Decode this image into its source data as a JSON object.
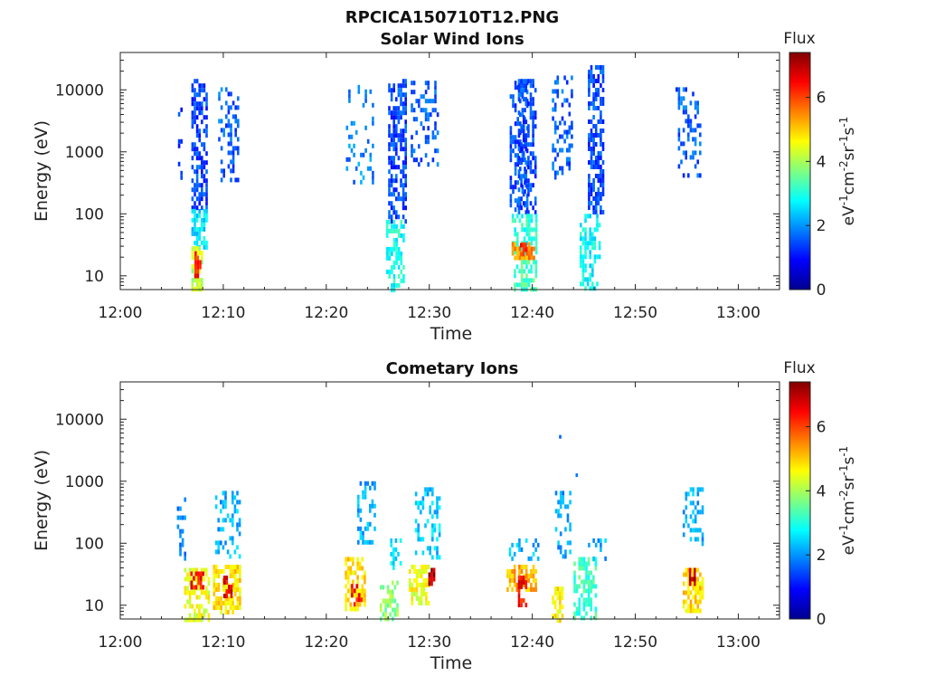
{
  "figure_title": "RPCICA150710T12.PNG",
  "chart_data": [
    {
      "type": "heatmap",
      "title": "Solar Wind Ions",
      "xlabel": "Time",
      "ylabel": "Energy (eV)",
      "yscale": "log",
      "ylim": [
        6,
        40000
      ],
      "xlim_minutes": [
        0,
        64
      ],
      "x_ticks": [
        "12:00",
        "12:10",
        "12:20",
        "12:30",
        "12:40",
        "12:50",
        "13:00"
      ],
      "y_ticks": [
        "10",
        "100",
        "1000",
        "10000"
      ],
      "colorbar": {
        "title": "Flux",
        "label": "eV-1cm-2sr-1s-1",
        "range": [
          0,
          7.4
        ],
        "ticks": [
          "0",
          "2",
          "4",
          "6"
        ]
      },
      "colormap": [
        "#00008f",
        "#0000ff",
        "#0080ff",
        "#00ffff",
        "#80ff80",
        "#ffff00",
        "#ff8000",
        "#ff0000",
        "#800000"
      ],
      "bursts": [
        {
          "t0": 5.6,
          "t1": 6.0,
          "emin": 300,
          "emax": 12000,
          "flux": 1.3,
          "density": 0.25
        },
        {
          "t0": 6.9,
          "t1": 8.3,
          "emin": 120,
          "emax": 15000,
          "flux": 1.4,
          "density": 0.6
        },
        {
          "t0": 6.9,
          "t1": 8.3,
          "emin": 30,
          "emax": 120,
          "flux": 2.6,
          "density": 0.6
        },
        {
          "t0": 6.9,
          "t1": 7.9,
          "emin": 6,
          "emax": 30,
          "flux": 4.2,
          "density": 0.75
        },
        {
          "t0": 7.2,
          "t1": 7.7,
          "emin": 10,
          "emax": 25,
          "flux": 6.2,
          "density": 0.7
        },
        {
          "t0": 9.5,
          "t1": 11.4,
          "emin": 350,
          "emax": 11000,
          "flux": 1.6,
          "density": 0.3
        },
        {
          "t0": 21.9,
          "t1": 24.5,
          "emin": 300,
          "emax": 12000,
          "flux": 1.9,
          "density": 0.18
        },
        {
          "t0": 26.0,
          "t1": 27.6,
          "emin": 80,
          "emax": 15000,
          "flux": 1.4,
          "density": 0.6
        },
        {
          "t0": 25.8,
          "t1": 27.6,
          "emin": 6,
          "emax": 80,
          "flux": 2.9,
          "density": 0.55
        },
        {
          "t0": 28.2,
          "t1": 30.8,
          "emin": 600,
          "emax": 14000,
          "flux": 1.6,
          "density": 0.3
        },
        {
          "t0": 37.8,
          "t1": 39.5,
          "emin": 120,
          "emax": 14000,
          "flux": 1.5,
          "density": 0.45
        },
        {
          "t0": 38.6,
          "t1": 40.3,
          "emin": 100,
          "emax": 15000,
          "flux": 1.4,
          "density": 0.55
        },
        {
          "t0": 38.0,
          "t1": 40.3,
          "emin": 20,
          "emax": 100,
          "flux": 3.0,
          "density": 0.55
        },
        {
          "t0": 38.0,
          "t1": 40.2,
          "emin": 18,
          "emax": 35,
          "flux": 5.4,
          "density": 0.7
        },
        {
          "t0": 38.8,
          "t1": 39.4,
          "emin": 22,
          "emax": 34,
          "flux": 6.3,
          "density": 0.6
        },
        {
          "t0": 38.2,
          "t1": 40.3,
          "emin": 6,
          "emax": 18,
          "flux": 3.3,
          "density": 0.6
        },
        {
          "t0": 41.9,
          "t1": 43.8,
          "emin": 400,
          "emax": 17000,
          "flux": 1.6,
          "density": 0.3
        },
        {
          "t0": 45.4,
          "t1": 46.9,
          "emin": 100,
          "emax": 25000,
          "flux": 1.4,
          "density": 0.6
        },
        {
          "t0": 44.6,
          "t1": 46.5,
          "emin": 6,
          "emax": 100,
          "flux": 2.8,
          "density": 0.5
        },
        {
          "t0": 53.9,
          "t1": 56.4,
          "emin": 400,
          "emax": 11000,
          "flux": 1.6,
          "density": 0.25
        }
      ]
    },
    {
      "type": "heatmap",
      "title": "Cometary Ions",
      "xlabel": "Time",
      "ylabel": "Energy (eV)",
      "yscale": "log",
      "ylim": [
        6,
        40000
      ],
      "xlim_minutes": [
        0,
        64
      ],
      "x_ticks": [
        "12:00",
        "12:10",
        "12:20",
        "12:30",
        "12:40",
        "12:50",
        "13:00"
      ],
      "y_ticks": [
        "10",
        "100",
        "1000",
        "10000"
      ],
      "colorbar": {
        "title": "Flux",
        "label": "eV-1cm-2sr-1s-1",
        "range": [
          0,
          7.4
        ],
        "ticks": [
          "0",
          "2",
          "4",
          "6"
        ]
      },
      "colormap": [
        "#00008f",
        "#0000ff",
        "#0080ff",
        "#00ffff",
        "#80ff80",
        "#ffff00",
        "#ff8000",
        "#ff0000",
        "#800000"
      ],
      "bursts": [
        {
          "t0": 5.5,
          "t1": 6.2,
          "emin": 60,
          "emax": 550,
          "flux": 2.0,
          "density": 0.3
        },
        {
          "t0": 6.2,
          "t1": 8.5,
          "emin": 6,
          "emax": 40,
          "flux": 4.5,
          "density": 0.6
        },
        {
          "t0": 6.8,
          "t1": 8.0,
          "emin": 18,
          "emax": 35,
          "flux": 6.4,
          "density": 0.65
        },
        {
          "t0": 9.2,
          "t1": 11.5,
          "emin": 60,
          "emax": 700,
          "flux": 2.2,
          "density": 0.3
        },
        {
          "t0": 9.0,
          "t1": 11.7,
          "emin": 8,
          "emax": 45,
          "flux": 4.8,
          "density": 0.7
        },
        {
          "t0": 10.0,
          "t1": 10.8,
          "emin": 14,
          "emax": 30,
          "flux": 6.6,
          "density": 0.6
        },
        {
          "t0": 21.8,
          "t1": 23.8,
          "emin": 8,
          "emax": 60,
          "flux": 4.8,
          "density": 0.6
        },
        {
          "t0": 22.4,
          "t1": 23.4,
          "emin": 10,
          "emax": 22,
          "flux": 6.4,
          "density": 0.6
        },
        {
          "t0": 23.0,
          "t1": 24.6,
          "emin": 100,
          "emax": 1000,
          "flux": 2.2,
          "density": 0.3
        },
        {
          "t0": 25.2,
          "t1": 27.0,
          "emin": 6,
          "emax": 25,
          "flux": 3.8,
          "density": 0.45
        },
        {
          "t0": 26.2,
          "t1": 27.2,
          "emin": 40,
          "emax": 120,
          "flux": 2.6,
          "density": 0.3
        },
        {
          "t0": 28.0,
          "t1": 30.0,
          "emin": 10,
          "emax": 45,
          "flux": 4.5,
          "density": 0.6
        },
        {
          "t0": 28.6,
          "t1": 31.0,
          "emin": 60,
          "emax": 800,
          "flux": 2.4,
          "density": 0.35
        },
        {
          "t0": 29.9,
          "t1": 30.5,
          "emin": 22,
          "emax": 40,
          "flux": 7.0,
          "density": 0.8
        },
        {
          "t0": 37.5,
          "t1": 40.3,
          "emin": 18,
          "emax": 45,
          "flux": 5.2,
          "density": 0.65
        },
        {
          "t0": 38.6,
          "t1": 39.5,
          "emin": 10,
          "emax": 30,
          "flux": 6.4,
          "density": 0.7
        },
        {
          "t0": 37.5,
          "t1": 40.5,
          "emin": 60,
          "emax": 120,
          "flux": 2.2,
          "density": 0.3
        },
        {
          "t0": 41.9,
          "t1": 43.0,
          "emin": 6,
          "emax": 20,
          "flux": 4.7,
          "density": 0.55
        },
        {
          "t0": 42.2,
          "t1": 43.6,
          "emin": 60,
          "emax": 700,
          "flux": 2.1,
          "density": 0.35
        },
        {
          "t0": 44.0,
          "t1": 46.2,
          "emin": 6,
          "emax": 60,
          "flux": 3.2,
          "density": 0.4
        },
        {
          "t0": 45.4,
          "t1": 47.0,
          "emin": 60,
          "emax": 120,
          "flux": 2.2,
          "density": 0.3
        },
        {
          "t0": 54.6,
          "t1": 56.6,
          "emin": 8,
          "emax": 40,
          "flux": 4.9,
          "density": 0.65
        },
        {
          "t0": 55.2,
          "t1": 55.8,
          "emin": 22,
          "emax": 40,
          "flux": 7.0,
          "density": 0.7
        },
        {
          "t0": 54.6,
          "t1": 56.6,
          "emin": 100,
          "emax": 800,
          "flux": 2.2,
          "density": 0.35
        }
      ],
      "spot_values": [
        {
          "t": 42.6,
          "energy": 5200,
          "flux": 1.6
        },
        {
          "t": 44.2,
          "energy": 1250,
          "flux": 1.8
        }
      ]
    }
  ]
}
